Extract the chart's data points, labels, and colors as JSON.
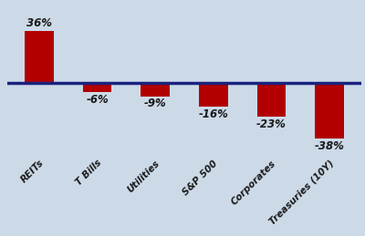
{
  "categories": [
    "REITs",
    "T Bills",
    "Utilities",
    "S&P 500",
    "Corporates",
    "Treasuries (10Y)"
  ],
  "values": [
    36,
    -6,
    -9,
    -16,
    -23,
    -38
  ],
  "labels": [
    "36%",
    "-6%",
    "-9%",
    "-16%",
    "-23%",
    "-38%"
  ],
  "bar_color": "#b20000",
  "background_color": "#ccdae8",
  "axis_line_color": "#1a237e",
  "text_color": "#1a1a1a",
  "ylim": [
    -48,
    44
  ],
  "bar_width": 0.5,
  "label_fontsize": 8.5,
  "tick_fontsize": 7.5
}
